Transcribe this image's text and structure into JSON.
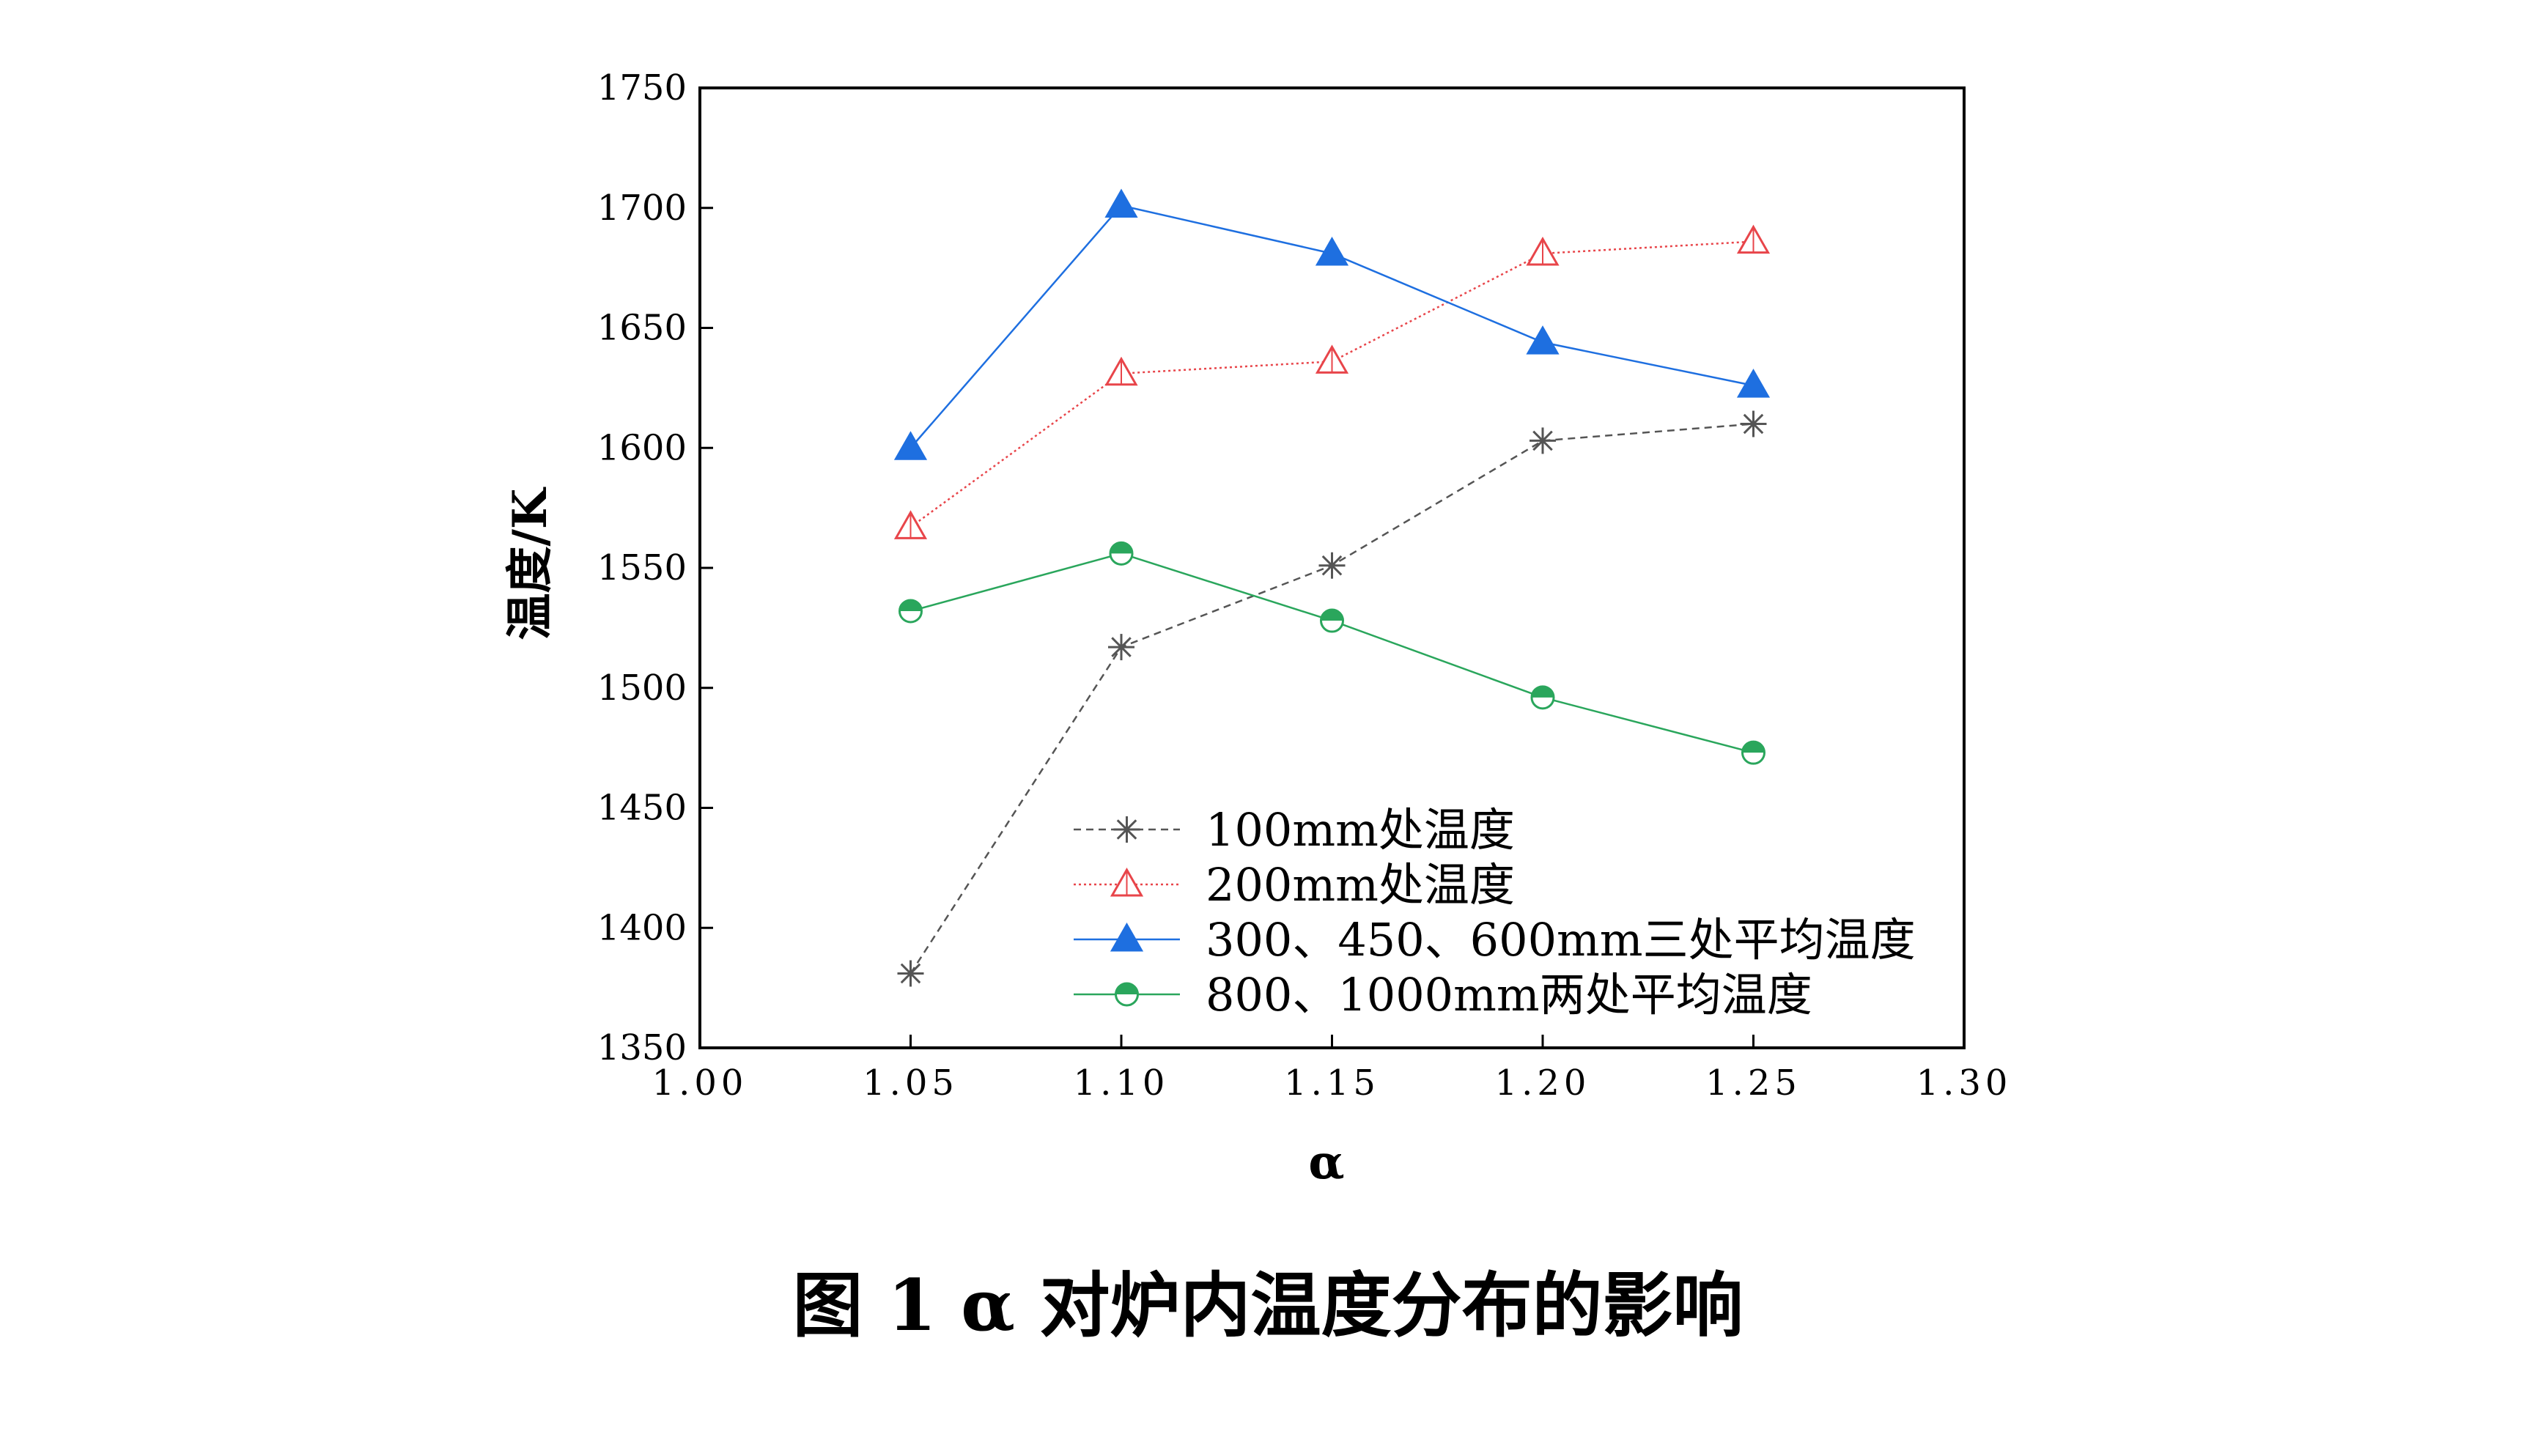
{
  "chart_data": {
    "type": "line",
    "title": "",
    "caption": "图 1 α 对炉内温度分布的影响",
    "xlabel": "α",
    "ylabel": "温度/K",
    "xlim": [
      1.0,
      1.3
    ],
    "ylim": [
      1350,
      1750
    ],
    "x_ticks": [
      "1.00",
      "1.05",
      "1.10",
      "1.15",
      "1.20",
      "1.25",
      "1.30"
    ],
    "y_ticks": [
      "1350",
      "1400",
      "1450",
      "1500",
      "1550",
      "1600",
      "1650",
      "1700",
      "1750"
    ],
    "x": [
      1.05,
      1.1,
      1.15,
      1.2,
      1.25
    ],
    "grid": false,
    "legend_position": "bottom-center",
    "series": [
      {
        "name": "100mm处温度",
        "values": [
          1381,
          1517,
          1551,
          1603,
          1610
        ],
        "color": "#555555",
        "line": "dashed",
        "marker": "asterisk"
      },
      {
        "name": "200mm处温度",
        "values": [
          1567,
          1631,
          1636,
          1681,
          1686
        ],
        "color": "#e8454a",
        "line": "dotted",
        "marker": "open-triangle"
      },
      {
        "name": "300、450、600mm三处平均温度",
        "values": [
          1600,
          1701,
          1681,
          1644,
          1626
        ],
        "color": "#1e6fe0",
        "line": "solid",
        "marker": "filled-triangle"
      },
      {
        "name": "800、1000mm两处平均温度",
        "values": [
          1532,
          1556,
          1528,
          1496,
          1473
        ],
        "color": "#2aa65c",
        "line": "solid",
        "marker": "half-filled-circle"
      }
    ]
  }
}
